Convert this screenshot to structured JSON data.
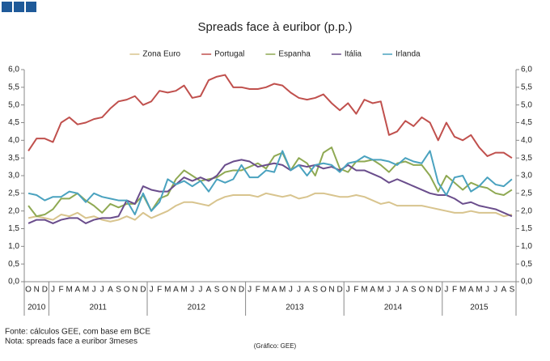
{
  "chart_data": {
    "type": "line",
    "title": "Spreads face à euribor (p.p.)",
    "categories": [
      "O",
      "N",
      "D",
      "J",
      "F",
      "M",
      "A",
      "M",
      "J",
      "J",
      "A",
      "S",
      "O",
      "N",
      "D",
      "J",
      "F",
      "M",
      "A",
      "M",
      "J",
      "J",
      "A",
      "S",
      "O",
      "N",
      "D",
      "J",
      "F",
      "M",
      "A",
      "M",
      "J",
      "J",
      "A",
      "S",
      "O",
      "N",
      "D",
      "J",
      "F",
      "M",
      "A",
      "M",
      "J",
      "J",
      "A",
      "S",
      "O",
      "N",
      "D",
      "J",
      "F",
      "M",
      "A",
      "M",
      "J",
      "J",
      "A",
      "S"
    ],
    "years": [
      "2010",
      "2011",
      "2012",
      "2013",
      "2014",
      "2015"
    ],
    "series": [
      {
        "name": "Zona Euro",
        "color": "#d8c48e",
        "values": [
          1.8,
          1.85,
          1.8,
          1.75,
          1.9,
          1.85,
          1.95,
          1.8,
          1.85,
          1.75,
          1.7,
          1.75,
          1.85,
          1.75,
          1.95,
          1.8,
          1.9,
          2.0,
          2.15,
          2.25,
          2.25,
          2.2,
          2.15,
          2.3,
          2.4,
          2.45,
          2.45,
          2.45,
          2.4,
          2.5,
          2.45,
          2.4,
          2.45,
          2.35,
          2.4,
          2.5,
          2.5,
          2.45,
          2.4,
          2.4,
          2.45,
          2.4,
          2.3,
          2.2,
          2.25,
          2.15,
          2.15,
          2.15,
          2.15,
          2.1,
          2.05,
          2.0,
          1.95,
          1.95,
          2.0,
          1.95,
          1.95,
          1.95,
          1.85,
          1.9
        ]
      },
      {
        "name": "Portugal",
        "color": "#c0504d",
        "values": [
          3.7,
          4.05,
          4.05,
          3.95,
          4.5,
          4.65,
          4.45,
          4.5,
          4.6,
          4.65,
          4.9,
          5.1,
          5.15,
          5.25,
          5.0,
          5.1,
          5.4,
          5.35,
          5.4,
          5.55,
          5.2,
          5.25,
          5.7,
          5.8,
          5.85,
          5.5,
          5.5,
          5.45,
          5.45,
          5.5,
          5.6,
          5.55,
          5.35,
          5.2,
          5.15,
          5.2,
          5.3,
          5.05,
          4.85,
          5.05,
          4.75,
          5.15,
          5.05,
          5.1,
          4.15,
          4.25,
          4.55,
          4.4,
          4.65,
          4.5,
          4.0,
          4.5,
          4.1,
          4.0,
          4.15,
          3.8,
          3.55,
          3.65,
          3.65,
          3.5
        ]
      },
      {
        "name": "Espanha",
        "color": "#8fa953",
        "values": [
          2.15,
          1.85,
          1.9,
          2.05,
          2.35,
          2.35,
          2.5,
          2.3,
          2.15,
          1.95,
          2.2,
          2.1,
          2.2,
          2.2,
          2.45,
          2.0,
          2.35,
          2.45,
          2.9,
          3.15,
          3.0,
          2.85,
          2.9,
          2.95,
          3.1,
          3.15,
          3.15,
          3.25,
          3.35,
          3.2,
          3.55,
          3.65,
          3.15,
          3.5,
          3.35,
          3.0,
          3.65,
          3.8,
          3.2,
          3.1,
          3.4,
          3.4,
          3.45,
          3.3,
          3.1,
          3.35,
          3.4,
          3.3,
          3.3,
          3.0,
          2.55,
          3.0,
          2.8,
          2.6,
          2.8,
          2.7,
          2.65,
          2.5,
          2.45,
          2.6
        ]
      },
      {
        "name": "Itália",
        "color": "#6a4d8c",
        "values": [
          1.65,
          1.75,
          1.75,
          1.65,
          1.75,
          1.8,
          1.8,
          1.65,
          1.75,
          1.8,
          1.8,
          1.85,
          2.3,
          2.2,
          2.7,
          2.6,
          2.55,
          2.55,
          2.75,
          2.95,
          2.85,
          2.95,
          2.85,
          3.0,
          3.3,
          3.4,
          3.45,
          3.4,
          3.25,
          3.3,
          3.35,
          3.3,
          3.15,
          3.3,
          3.25,
          3.3,
          3.2,
          3.25,
          3.15,
          3.3,
          3.15,
          3.15,
          3.05,
          2.95,
          2.8,
          2.9,
          2.8,
          2.7,
          2.6,
          2.5,
          2.45,
          2.45,
          2.35,
          2.2,
          2.25,
          2.15,
          2.1,
          2.05,
          1.95,
          1.85
        ]
      },
      {
        "name": "Irlanda",
        "color": "#4aa2bf",
        "values": [
          2.5,
          2.45,
          2.3,
          2.4,
          2.4,
          2.55,
          2.5,
          2.25,
          2.5,
          2.4,
          2.35,
          2.3,
          2.3,
          1.9,
          2.5,
          2.0,
          2.25,
          2.9,
          2.75,
          2.85,
          2.7,
          2.85,
          2.55,
          2.9,
          2.8,
          2.9,
          3.3,
          2.95,
          2.95,
          3.15,
          3.1,
          3.7,
          3.15,
          3.3,
          3.0,
          3.3,
          3.35,
          3.3,
          3.1,
          3.35,
          3.4,
          3.55,
          3.45,
          3.45,
          3.4,
          3.3,
          3.5,
          3.4,
          3.35,
          3.7,
          2.8,
          2.45,
          2.95,
          3.0,
          2.55,
          2.7,
          2.95,
          2.75,
          2.7,
          2.9
        ]
      }
    ],
    "ylim": [
      0,
      6
    ],
    "yticks": [
      {
        "value": 0,
        "label": "0,0"
      },
      {
        "value": 0.5,
        "label": "0,5"
      },
      {
        "value": 1,
        "label": "1,0"
      },
      {
        "value": 1.5,
        "label": "1,5"
      },
      {
        "value": 2,
        "label": "2,0"
      },
      {
        "value": 2.5,
        "label": "2,5"
      },
      {
        "value": 3,
        "label": "3,0"
      },
      {
        "value": 3.5,
        "label": "3,5"
      },
      {
        "value": 4,
        "label": "4,0"
      },
      {
        "value": 4.5,
        "label": "4,5"
      },
      {
        "value": 5,
        "label": "5,0"
      },
      {
        "value": 5.5,
        "label": "5,5"
      },
      {
        "value": 6,
        "label": "6,0"
      }
    ],
    "y2lim": [
      0,
      6
    ],
    "y2ticks": [
      {
        "value": 0,
        "label": "0,0"
      },
      {
        "value": 0.5,
        "label": "0,5"
      },
      {
        "value": 1,
        "label": "1,0"
      },
      {
        "value": 1.5,
        "label": "1,5"
      },
      {
        "value": 2,
        "label": "2,0"
      },
      {
        "value": 2.5,
        "label": "2,5"
      },
      {
        "value": 3,
        "label": "3,0"
      },
      {
        "value": 3.5,
        "label": "3,5"
      },
      {
        "value": 4,
        "label": "4,0"
      },
      {
        "value": 4.5,
        "label": "4,5"
      },
      {
        "value": 5,
        "label": "5,0"
      },
      {
        "value": 5.5,
        "label": "5,5"
      },
      {
        "value": 6,
        "label": "6,0"
      }
    ],
    "grid": false,
    "legend": "top",
    "source": "Fonte: cálculos GEE, com base em BCE",
    "note": "Nota: spreads face a euribor 3meses",
    "credit": "(Gráfico: GEE)"
  }
}
